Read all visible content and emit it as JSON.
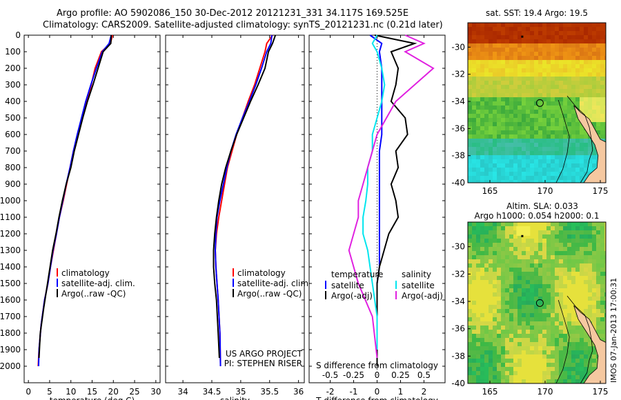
{
  "header": {
    "line1": "Argo profile: AO 5902086_150 30-Dec-2012 20121231_331 34.117S 169.525E",
    "line2": "Climatology: CARS2009. Satellite-adjusted climatology: synTS_20121231.nc (0.21d later)"
  },
  "colors": {
    "clim": "#ff0000",
    "sat": "#0000ff",
    "argo": "#000000",
    "cyan": "#00e5ee",
    "magenta": "#e020e0"
  },
  "chart_data": [
    {
      "type": "line",
      "name_id": "temperature-profile",
      "xlabel": "temperature (deg C)",
      "ylabel": "",
      "xlim": [
        -1,
        31
      ],
      "ylim": [
        0,
        2100
      ],
      "xticks": [
        0,
        5,
        10,
        15,
        20,
        25,
        30
      ],
      "yticks": [
        0,
        100,
        200,
        300,
        400,
        500,
        600,
        700,
        800,
        900,
        1000,
        1100,
        1200,
        1300,
        1400,
        1500,
        1600,
        1700,
        1800,
        1900,
        2000
      ],
      "legend": [
        "climatology",
        "satellite-adj. clim.",
        "Argo(..raw -QC)"
      ],
      "series": [
        {
          "name": "climatology",
          "color": "clim",
          "x": [
            19.8,
            19.3,
            17.2,
            15.7,
            14.8,
            13.8,
            12.7,
            11.6,
            10.6,
            9.8,
            9.0,
            8.2,
            7.3,
            6.6,
            5.9,
            5.2,
            4.6,
            3.8,
            3.0,
            2.5,
            2.3
          ],
          "y": [
            0,
            50,
            100,
            200,
            300,
            400,
            500,
            600,
            700,
            800,
            900,
            1000,
            1100,
            1200,
            1300,
            1400,
            1500,
            1600,
            1750,
            1900,
            2000
          ]
        },
        {
          "name": "satellite-adj. clim.",
          "color": "sat",
          "x": [
            19.5,
            19.0,
            17.4,
            16.0,
            14.7,
            13.5,
            12.5,
            11.5,
            10.6,
            9.8,
            8.9,
            8.1,
            7.3,
            6.6,
            5.8,
            5.2,
            4.6,
            3.8,
            3.0,
            2.5,
            2.4
          ],
          "y": [
            0,
            50,
            100,
            200,
            300,
            400,
            500,
            600,
            700,
            800,
            900,
            1000,
            1100,
            1200,
            1300,
            1400,
            1500,
            1600,
            1750,
            1900,
            2000
          ]
        },
        {
          "name": "Argo(..raw -QC)",
          "color": "argo",
          "x": [
            19.5,
            19.4,
            17.6,
            16.4,
            15.2,
            13.9,
            12.8,
            11.8,
            10.8,
            10.0,
            8.9,
            8.0,
            7.2,
            6.5,
            5.7,
            5.1,
            4.5,
            3.6,
            2.8,
            2.5
          ],
          "y": [
            0,
            50,
            100,
            200,
            300,
            400,
            500,
            600,
            700,
            800,
            900,
            1000,
            1100,
            1200,
            1300,
            1400,
            1500,
            1650,
            1800,
            1950
          ]
        }
      ]
    },
    {
      "type": "line",
      "name_id": "salinity-profile",
      "xlabel": "salinity",
      "ylabel": "",
      "xlim": [
        33.7,
        36.1
      ],
      "ylim": [
        0,
        2100
      ],
      "xticks": [
        34,
        34.5,
        35,
        35.5,
        36
      ],
      "legend": [
        "climatology",
        "satellite-adj. clim.",
        "Argo(..raw -QC)"
      ],
      "annotations": [
        "US ARGO PROJECT",
        "PI: STEPHEN RISER"
      ],
      "series": [
        {
          "name": "climatology",
          "color": "clim",
          "x": [
            35.55,
            35.45,
            35.42,
            35.33,
            35.24,
            35.13,
            35.03,
            34.93,
            34.85,
            34.77,
            34.72,
            34.67,
            34.62,
            34.58,
            34.56,
            34.57,
            34.59,
            34.61,
            34.64,
            34.65
          ],
          "y": [
            0,
            50,
            100,
            200,
            300,
            400,
            500,
            600,
            700,
            800,
            900,
            1000,
            1100,
            1200,
            1300,
            1400,
            1500,
            1600,
            1800,
            2000
          ]
        },
        {
          "name": "satellite-adj. clim.",
          "color": "sat",
          "x": [
            35.54,
            35.52,
            35.45,
            35.36,
            35.26,
            35.15,
            35.03,
            34.92,
            34.83,
            34.76,
            34.7,
            34.64,
            34.59,
            34.57,
            34.56,
            34.57,
            34.59,
            34.61,
            34.64,
            34.65
          ],
          "y": [
            0,
            50,
            100,
            200,
            300,
            400,
            500,
            600,
            700,
            800,
            900,
            1000,
            1100,
            1200,
            1300,
            1400,
            1500,
            1600,
            1800,
            2000
          ]
        },
        {
          "name": "Argo(..raw -QC)",
          "color": "argo",
          "x": [
            35.6,
            35.55,
            35.48,
            35.42,
            35.3,
            35.17,
            35.05,
            34.93,
            34.83,
            34.74,
            34.67,
            34.62,
            34.58,
            34.55,
            34.53,
            34.53,
            34.55,
            34.58,
            34.61,
            34.63
          ],
          "y": [
            0,
            50,
            100,
            200,
            300,
            400,
            500,
            600,
            700,
            800,
            900,
            1000,
            1100,
            1200,
            1300,
            1400,
            1500,
            1600,
            1800,
            1950
          ]
        }
      ]
    },
    {
      "type": "line",
      "name_id": "difference-profile",
      "xlabel": "T difference from climatology",
      "xlabel2": "S difference from climatology",
      "xlim": [
        -2.9,
        2.9
      ],
      "ylim": [
        0,
        2100
      ],
      "xticks": [
        -2,
        -1,
        0,
        1,
        2
      ],
      "sticks": [
        -0.5,
        -0.25,
        0,
        0.25,
        0.5
      ],
      "sticks_labels": [
        "-0.5",
        "-0.25",
        "0",
        "0.25",
        "0.5"
      ],
      "legend_headers": [
        "temperature",
        "salinity"
      ],
      "legend": [
        "satellite",
        "Argo(-adj)",
        "satellite",
        "Argo(-adj)"
      ],
      "series": [
        {
          "name": "T satellite",
          "color": "sat",
          "x": [
            -0.3,
            0.2,
            0.1,
            0.2,
            0.2,
            0.2,
            0.2,
            0.2,
            0.1,
            0.1,
            0.1,
            0.1,
            0.1,
            0.1,
            0.1,
            0.1,
            0.0,
            0.0,
            0.0
          ],
          "y": [
            0,
            50,
            100,
            200,
            300,
            400,
            500,
            600,
            700,
            800,
            900,
            1000,
            1100,
            1200,
            1300,
            1400,
            1500,
            1700,
            1900
          ]
        },
        {
          "name": "T Argo(-adj)",
          "color": "argo",
          "x": [
            -0.1,
            1.6,
            0.6,
            0.9,
            0.8,
            0.6,
            1.2,
            1.3,
            0.8,
            0.9,
            0.6,
            0.8,
            0.9,
            0.5,
            0.3,
            0.1,
            0.0,
            0.0,
            0.0
          ],
          "y": [
            0,
            50,
            100,
            200,
            300,
            400,
            500,
            600,
            700,
            800,
            900,
            1000,
            1100,
            1200,
            1300,
            1400,
            1500,
            1700,
            2000
          ]
        },
        {
          "name": "S satellite",
          "color": "cyan",
          "x": [
            0.0,
            -0.05,
            0.0,
            0.05,
            0.08,
            0.05,
            0.0,
            -0.05,
            -0.05,
            -0.1,
            -0.1,
            -0.12,
            -0.15,
            -0.15,
            -0.1,
            -0.05,
            0.0,
            0.0
          ],
          "y": [
            0,
            50,
            100,
            200,
            300,
            400,
            500,
            600,
            700,
            800,
            900,
            1000,
            1100,
            1200,
            1300,
            1500,
            1700,
            1900
          ]
        },
        {
          "name": "S Argo(-adj)",
          "color": "magenta",
          "x": [
            0.3,
            0.5,
            0.3,
            0.6,
            0.4,
            0.2,
            0.1,
            0.0,
            -0.05,
            -0.1,
            -0.15,
            -0.2,
            -0.2,
            -0.25,
            -0.3,
            -0.2,
            -0.05,
            0.0
          ],
          "y": [
            0,
            50,
            100,
            200,
            300,
            400,
            500,
            600,
            700,
            800,
            900,
            1000,
            1100,
            1200,
            1300,
            1500,
            1700,
            1950
          ]
        }
      ]
    },
    {
      "type": "heatmap",
      "name_id": "sst-map",
      "title": "sat. SST: 19.4  Argo: 19.5",
      "xlim": [
        163,
        175.5
      ],
      "ylim": [
        -40,
        -28.2
      ],
      "xticks": [
        165,
        170,
        175
      ],
      "yticks": [
        -30,
        -32,
        -34,
        -36,
        -38,
        -40
      ],
      "marker": {
        "lon": 169.525,
        "lat": -34.117
      }
    },
    {
      "type": "heatmap",
      "name_id": "sla-map",
      "title": "Altim. SLA: 0.033",
      "subtitle": "Argo h1000: 0.054 h2000: 0.1",
      "xlim": [
        163,
        175.5
      ],
      "ylim": [
        -40,
        -28.2
      ],
      "xticks": [
        165,
        170,
        175
      ],
      "yticks": [
        -30,
        -32,
        -34,
        -36,
        -38,
        -40
      ],
      "marker": {
        "lon": 169.525,
        "lat": -34.117
      }
    }
  ],
  "stamp": "IMOS 07-Jan-2013 17:00:31"
}
